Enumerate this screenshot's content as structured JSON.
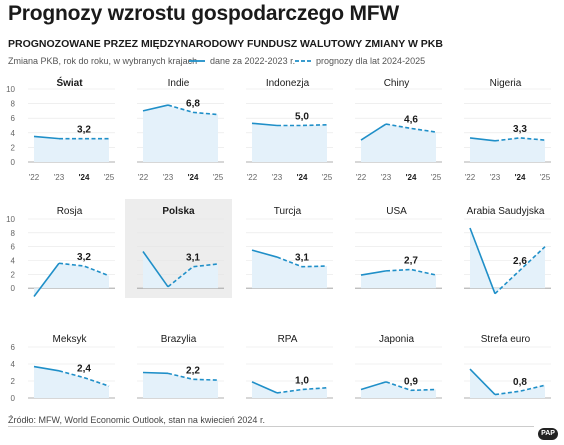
{
  "title": "Prognozy wzrostu gospodarczego MFW",
  "subtitle": "PROGNOZOWANE PRZEZ MIĘDZYNARODOWY FUNDUSZ WALUTOWY ZMIANY W PKB",
  "unit_note": "Zmiana PKB, rok do roku, w wybranych krajach",
  "legend": {
    "actual": "dane za 2022-2023 r.",
    "forecast": "prognozy dla lat 2024-2025"
  },
  "source": "Źródło: MFW, World Economic Outlook, stan na kwiecień 2024 r.",
  "logo_text": "PAP",
  "colors": {
    "line": "#1f8fc8",
    "area": "#e4f1fa",
    "highlight": "#ededed"
  },
  "chart_data": {
    "type": "line",
    "x": [
      "'22",
      "'23",
      "'24",
      "'25"
    ],
    "x_bold_index": 2,
    "actual_years": [
      "'22",
      "'23"
    ],
    "forecast_years": [
      "'24",
      "'25"
    ],
    "row_axes": [
      {
        "ylim": [
          0,
          10
        ],
        "ticks": [
          "0",
          "2",
          "4",
          "6",
          "8",
          "10"
        ]
      },
      {
        "ylim": [
          -2,
          10
        ],
        "ticks": [
          "0",
          "2",
          "4",
          "6",
          "8",
          "10"
        ]
      },
      {
        "ylim": [
          0,
          6
        ],
        "ticks": [
          "0",
          "2",
          "4",
          "6"
        ]
      }
    ],
    "panels": [
      {
        "name": "Świat",
        "bold": true,
        "label": "3,2",
        "values": [
          3.5,
          3.2,
          3.2,
          3.2
        ]
      },
      {
        "name": "Indie",
        "label": "6,8",
        "values": [
          7.0,
          7.8,
          6.8,
          6.5
        ]
      },
      {
        "name": "Indonezja",
        "label": "5,0",
        "values": [
          5.3,
          5.0,
          5.0,
          5.1
        ]
      },
      {
        "name": "Chiny",
        "label": "4,6",
        "values": [
          3.0,
          5.2,
          4.6,
          4.1
        ]
      },
      {
        "name": "Nigeria",
        "label": "3,3",
        "values": [
          3.3,
          2.9,
          3.3,
          3.0
        ]
      },
      {
        "name": "Rosja",
        "label": "3,2",
        "values": [
          -1.2,
          3.6,
          3.2,
          1.8
        ]
      },
      {
        "name": "Polska",
        "bold": true,
        "label": "3,1",
        "values": [
          5.3,
          0.2,
          3.1,
          3.5
        ]
      },
      {
        "name": "Turcja",
        "label": "3,1",
        "values": [
          5.5,
          4.5,
          3.1,
          3.2
        ]
      },
      {
        "name": "USA",
        "label": "2,7",
        "values": [
          1.9,
          2.5,
          2.7,
          1.9
        ]
      },
      {
        "name": "Arabia Saudyjska",
        "label": "2,6",
        "values": [
          8.7,
          -0.8,
          2.6,
          6.0
        ]
      },
      {
        "name": "Meksyk",
        "label": "2,4",
        "values": [
          3.7,
          3.2,
          2.4,
          1.4
        ]
      },
      {
        "name": "Brazylia",
        "label": "2,2",
        "values": [
          3.0,
          2.9,
          2.2,
          2.1
        ]
      },
      {
        "name": "RPA",
        "label": "1,0",
        "values": [
          1.9,
          0.6,
          1.0,
          1.2
        ]
      },
      {
        "name": "Japonia",
        "label": "0,9",
        "values": [
          1.0,
          1.9,
          0.9,
          1.0
        ]
      },
      {
        "name": "Strefa euro",
        "label": "0,8",
        "values": [
          3.4,
          0.4,
          0.8,
          1.5
        ]
      }
    ]
  }
}
